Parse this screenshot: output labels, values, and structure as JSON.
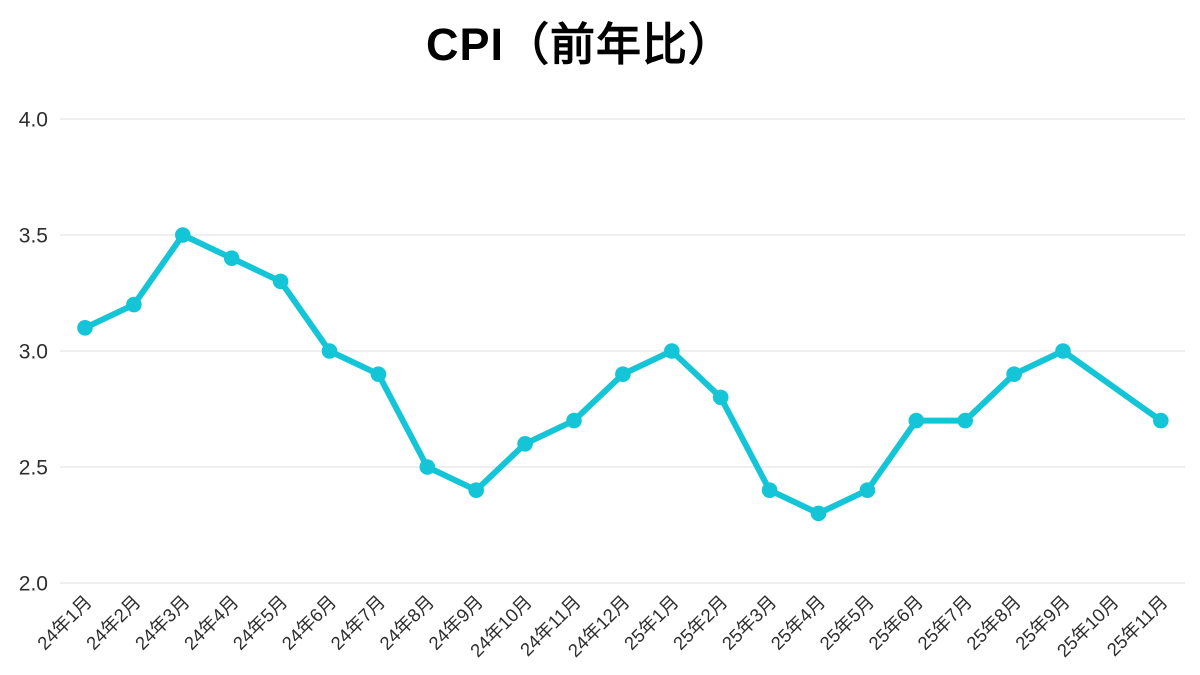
{
  "chart_data": {
    "type": "line",
    "title": "CPI（前年比）",
    "categories": [
      "24年1月",
      "24年2月",
      "24年3月",
      "24年4月",
      "24年5月",
      "24年6月",
      "24年7月",
      "24年8月",
      "24年9月",
      "24年10月",
      "24年11月",
      "24年12月",
      "25年1月",
      "25年2月",
      "25年3月",
      "25年4月",
      "25年5月",
      "25年6月",
      "25年7月",
      "25年8月",
      "25年9月",
      "25年10月",
      "25年11月"
    ],
    "series": [
      {
        "name": "CPI前年比",
        "values": [
          3.1,
          3.2,
          3.5,
          3.4,
          3.3,
          3.0,
          2.9,
          2.5,
          2.4,
          2.6,
          2.7,
          2.9,
          3.0,
          2.8,
          2.4,
          2.3,
          2.4,
          2.7,
          2.7,
          2.9,
          3.0,
          null,
          2.7
        ]
      }
    ],
    "note": "no marker at 25年10月 (missing value, line interpolated)",
    "xlabel": "",
    "ylabel": "",
    "ylim": [
      2.0,
      4.0
    ],
    "yticks": [
      2.0,
      2.5,
      3.0,
      3.5,
      4.0
    ],
    "y_tick_labels": [
      "2.0",
      "2.5",
      "3.0",
      "3.5",
      "4.0"
    ],
    "grid": true,
    "legend_position": "none",
    "marker": "circle",
    "colors": {
      "line": "#14c5d8",
      "grid": "#e5e5e5",
      "tick_label": "#2e2e2e",
      "title": "#000000",
      "background": "#ffffff"
    }
  }
}
